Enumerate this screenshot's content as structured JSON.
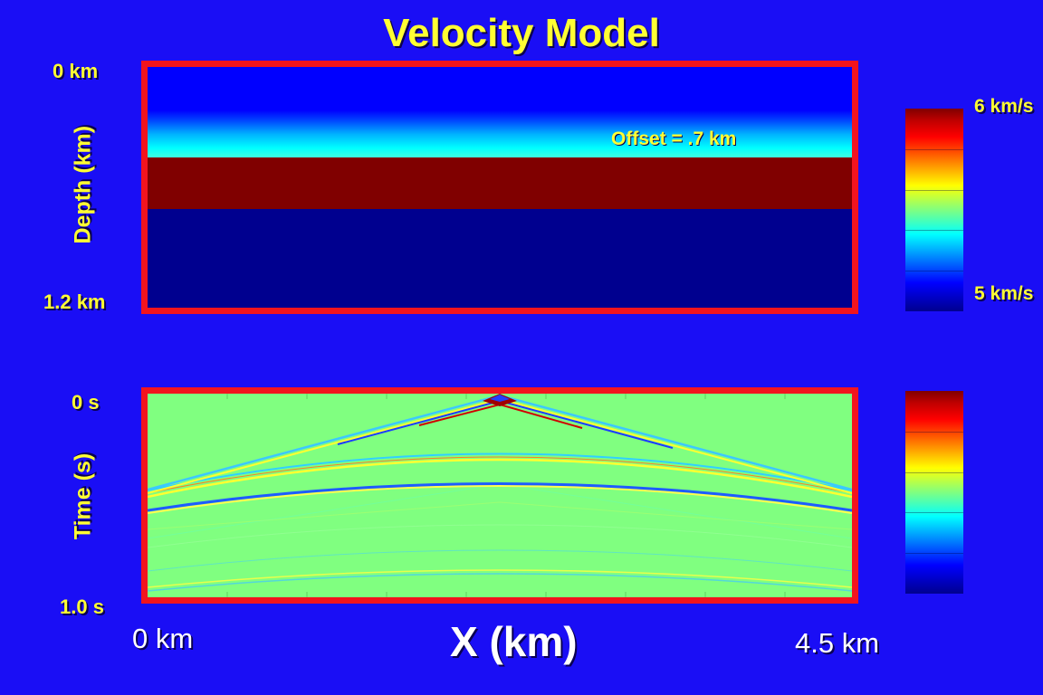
{
  "title": "Velocity Model",
  "top_panel": {
    "y_label": "Depth (km)",
    "y_top": "0 km",
    "y_bottom": "1.2 km",
    "annotation": "Offset = .7 km"
  },
  "bottom_panel": {
    "y_label": "Time (s)",
    "y_top": "0 s",
    "y_bottom": "1.0 s"
  },
  "x_axis": {
    "label": "X (km)",
    "left": "0 km",
    "right": "4.5 km"
  },
  "colorbar": {
    "top_label": "6 km/s",
    "bottom_label": "5 km/s"
  },
  "colors": {
    "background": "#1a0ef5",
    "frame": "#f2141e",
    "label_yellow": "#ffff33"
  }
}
